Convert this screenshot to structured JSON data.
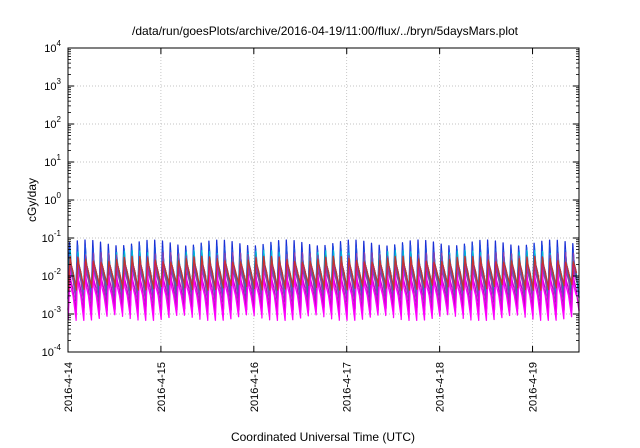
{
  "chart_data": {
    "type": "line",
    "title": "/data/run/goesPlots/archive/2016-04-19/11:00/flux/../bryn/5daysMars.plot",
    "xlabel": "Coordinated Universal Time (UTC)",
    "ylabel": "cGy/day",
    "yscale": "log",
    "ylim": [
      0.0001,
      10000
    ],
    "xlim": [
      "2016-04-14 00:00",
      "2016-04-19 12:00"
    ],
    "x_ticks": [
      "2016-4-14",
      "2016-4-15",
      "2016-4-16",
      "2016-4-17",
      "2016-4-18",
      "2016-4-19"
    ],
    "y_ticks": [
      {
        "base": "10",
        "exp": "4"
      },
      {
        "base": "10",
        "exp": "3"
      },
      {
        "base": "10",
        "exp": "2"
      },
      {
        "base": "10",
        "exp": "1"
      },
      {
        "base": "10",
        "exp": "0"
      },
      {
        "base": "10",
        "exp": "-1"
      },
      {
        "base": "10",
        "exp": "-2"
      },
      {
        "base": "10",
        "exp": "-3"
      },
      {
        "base": "10",
        "exp": "-4"
      }
    ],
    "grid": true,
    "legend": "none",
    "oscillation_period_hours": 2,
    "series": [
      {
        "color": "#1a2fd6",
        "peak": 0.075,
        "trough": 0.0025
      },
      {
        "color": "#1f4fe0",
        "peak": 0.055,
        "trough": 0.003
      },
      {
        "color": "#00b8d8",
        "peak": 0.04,
        "trough": 0.0035
      },
      {
        "color": "#1aa0a0",
        "peak": 0.03,
        "trough": 0.004
      },
      {
        "color": "#3a7a8a",
        "peak": 0.025,
        "trough": 0.0045
      },
      {
        "color": "#8a40b0",
        "peak": 0.035,
        "trough": 0.0015
      },
      {
        "color": "#c800c8",
        "peak": 0.02,
        "trough": 0.0012
      },
      {
        "color": "#ff00ff",
        "peak": 0.012,
        "trough": 0.0008
      },
      {
        "color": "#c83030",
        "peak": 0.028,
        "trough": 0.005
      }
    ]
  }
}
